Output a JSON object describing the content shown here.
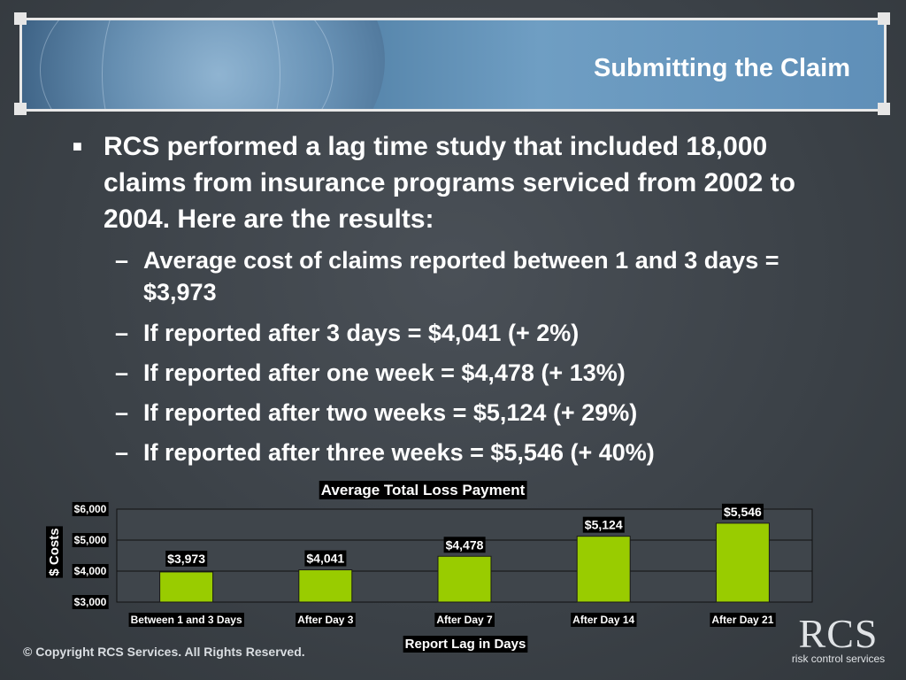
{
  "slide": {
    "title": "Submitting the Claim",
    "main_bullet": "RCS performed a lag time study that included 18,000 claims from insurance programs serviced from 2002 to 2004.  Here are the results:",
    "sub_bullets": [
      "Average cost of claims reported between 1 and 3 days = $3,973",
      "If reported after 3 days = $4,041 (+ 2%)",
      "If reported after one week = $4,478 (+ 13%)",
      "If reported after two weeks = $5,124 (+ 29%)",
      "If reported after three weeks = $5,546 (+ 40%)"
    ],
    "footer": "© Copyright RCS Services. All Rights Reserved.",
    "logo_big": "RCS",
    "logo_small": "risk control services"
  },
  "chart_data": {
    "type": "bar",
    "title": "Average Total Loss Payment",
    "xlabel": "Report Lag in Days",
    "ylabel": "$ Costs",
    "categories": [
      "Between 1 and 3 Days",
      "After Day 3",
      "After Day 7",
      "After Day 14",
      "After Day 21"
    ],
    "values": [
      3973,
      4041,
      4478,
      5124,
      5546
    ],
    "value_labels": [
      "$3,973",
      "$4,041",
      "$4,478",
      "$5,124",
      "$5,546"
    ],
    "ylim": [
      3000,
      6000
    ],
    "yticks": [
      3000,
      4000,
      5000,
      6000
    ],
    "ytick_labels": [
      "$3,000",
      "$4,000",
      "$5,000",
      "$6,000"
    ],
    "grid": true,
    "bar_color": "#99cc00"
  }
}
